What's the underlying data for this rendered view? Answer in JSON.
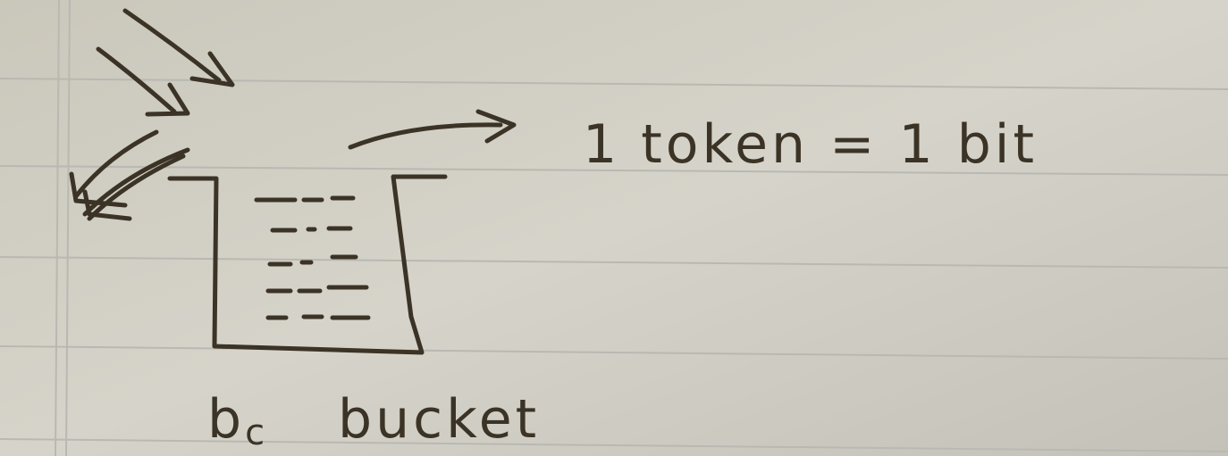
{
  "rule": "1 token = 1 bit",
  "bucket": {
    "symbol": "b",
    "subscript": "c",
    "label": "bucket"
  }
}
